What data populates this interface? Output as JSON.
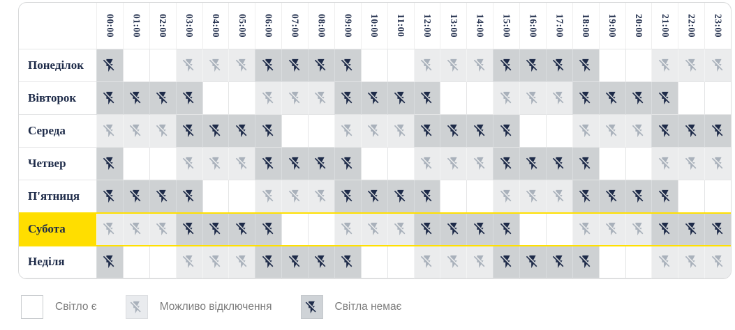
{
  "header": {
    "times": [
      "00:00",
      "01:00",
      "02:00",
      "03:00",
      "04:00",
      "05:00",
      "06:00",
      "07:00",
      "08:00",
      "09:00",
      "10:00",
      "11:00",
      "12:00",
      "13:00",
      "14:00",
      "15:00",
      "16:00",
      "17:00",
      "18:00",
      "19:00",
      "20:00",
      "21:00",
      "22:00",
      "23:00"
    ]
  },
  "schedule": {
    "state_meaning": {
      "on": "Світло є",
      "maybe": "Можливо відключення",
      "off": "Світла немає"
    },
    "rows": [
      {
        "day": "Понеділок",
        "highlighted": false,
        "states": [
          "off",
          "on",
          "on",
          "maybe",
          "maybe",
          "maybe",
          "off",
          "off",
          "off",
          "off",
          "on",
          "on",
          "maybe",
          "maybe",
          "maybe",
          "off",
          "off",
          "off",
          "off",
          "on",
          "on",
          "maybe",
          "maybe",
          "maybe"
        ]
      },
      {
        "day": "Вівторок",
        "highlighted": false,
        "states": [
          "off",
          "off",
          "off",
          "off",
          "on",
          "on",
          "maybe",
          "maybe",
          "maybe",
          "off",
          "off",
          "off",
          "off",
          "on",
          "on",
          "maybe",
          "maybe",
          "maybe",
          "off",
          "off",
          "off",
          "off",
          "on",
          "on"
        ]
      },
      {
        "day": "Середа",
        "highlighted": false,
        "states": [
          "maybe",
          "maybe",
          "maybe",
          "off",
          "off",
          "off",
          "off",
          "on",
          "on",
          "maybe",
          "maybe",
          "maybe",
          "off",
          "off",
          "off",
          "off",
          "on",
          "on",
          "maybe",
          "maybe",
          "maybe",
          "off",
          "off",
          "off"
        ]
      },
      {
        "day": "Четвер",
        "highlighted": false,
        "states": [
          "off",
          "on",
          "on",
          "maybe",
          "maybe",
          "maybe",
          "off",
          "off",
          "off",
          "off",
          "on",
          "on",
          "maybe",
          "maybe",
          "maybe",
          "off",
          "off",
          "off",
          "off",
          "on",
          "on",
          "maybe",
          "maybe",
          "maybe"
        ]
      },
      {
        "day": "П'ятниця",
        "highlighted": false,
        "states": [
          "off",
          "off",
          "off",
          "off",
          "on",
          "on",
          "maybe",
          "maybe",
          "maybe",
          "off",
          "off",
          "off",
          "off",
          "on",
          "on",
          "maybe",
          "maybe",
          "maybe",
          "off",
          "off",
          "off",
          "off",
          "on",
          "on"
        ]
      },
      {
        "day": "Субота",
        "highlighted": true,
        "states": [
          "maybe",
          "maybe",
          "maybe",
          "off",
          "off",
          "off",
          "off",
          "on",
          "on",
          "maybe",
          "maybe",
          "maybe",
          "off",
          "off",
          "off",
          "off",
          "on",
          "on",
          "maybe",
          "maybe",
          "maybe",
          "off",
          "off",
          "off"
        ]
      },
      {
        "day": "Неділя",
        "highlighted": false,
        "states": [
          "off",
          "on",
          "on",
          "maybe",
          "maybe",
          "maybe",
          "off",
          "off",
          "off",
          "off",
          "on",
          "on",
          "maybe",
          "maybe",
          "maybe",
          "off",
          "off",
          "off",
          "off",
          "on",
          "on",
          "maybe",
          "maybe",
          "maybe"
        ]
      }
    ]
  },
  "legend": {
    "items": [
      {
        "label": "Світло є",
        "state": "on",
        "icon": "none"
      },
      {
        "label": "Можливо відключення",
        "state": "maybe",
        "icon": "flash-off-icon"
      },
      {
        "label": "Світла немає",
        "state": "off",
        "icon": "flash-off-icon"
      }
    ]
  },
  "colors": {
    "navy": "#1e2b49",
    "maybe_icon_gray": "#a9b1bb",
    "off_cell_bg": "#ced1d3",
    "maybe_cell_bg": "#ebeced",
    "saturday_yellow": "#ffde00",
    "saturday_line": "#ffe000"
  }
}
